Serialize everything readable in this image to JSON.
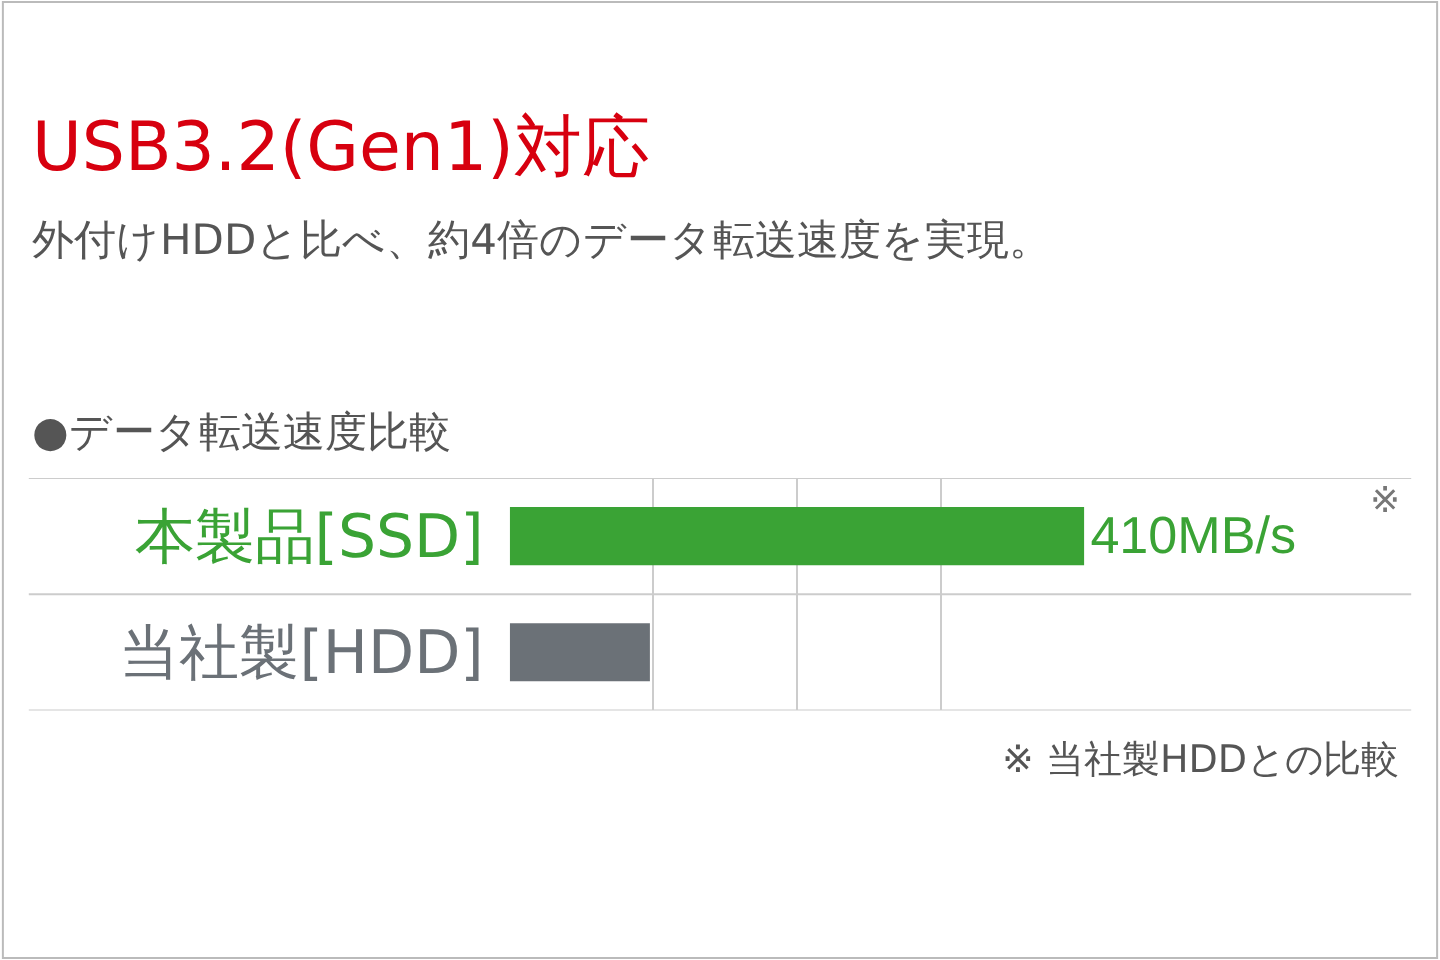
{
  "chart_data": {
    "type": "bar",
    "orientation": "horizontal",
    "xlim": [
      0,
      410
    ],
    "title": "USB3.2(Gen1)対応",
    "subtitle": "外付けHDDと比べ、約4倍のデータ転送速度を実現。",
    "categories": [
      "本製品[SSD]",
      "当社製[HDD]"
    ],
    "values": [
      410,
      100
    ],
    "colors": [
      "#3aa335",
      "#6b7177"
    ],
    "value_labels": [
      "410MB/s",
      null
    ],
    "grid": "x",
    "annotations": [
      "●データ転送速度比較",
      "※",
      "※ 当社製HDDとの比較"
    ]
  }
}
